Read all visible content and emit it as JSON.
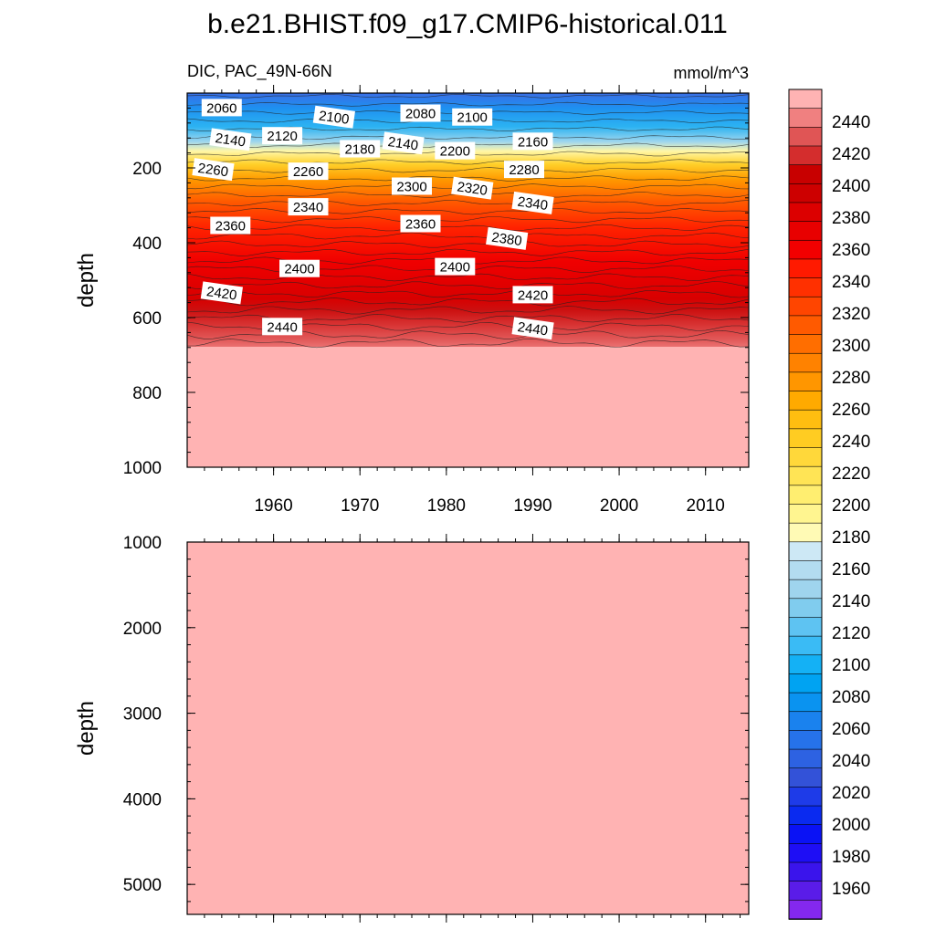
{
  "title": "b.e21.BHIST.f09_g17.CMIP6-historical.011",
  "subtitle_left": "DIC, PAC_49N-66N",
  "subtitle_right": "mmol/m^3",
  "chart_data": [
    {
      "type": "heatmap",
      "name": "upper-panel",
      "variable": "DIC",
      "region": "PAC_49N-66N",
      "units": "mmol/m^3",
      "xlabel": "",
      "ylabel": "depth",
      "xlim": [
        1950,
        2015
      ],
      "ylim": [
        1000,
        0
      ],
      "x_ticks": [
        1960,
        1970,
        1980,
        1990,
        2000,
        2010
      ],
      "y_ticks": [
        200,
        400,
        600,
        800,
        1000
      ],
      "contour_labels": [
        {
          "value": 2060,
          "year": 1954,
          "depth": 40
        },
        {
          "value": 2100,
          "year": 1967,
          "depth": 65
        },
        {
          "value": 2080,
          "year": 1977,
          "depth": 55
        },
        {
          "value": 2100,
          "year": 1983,
          "depth": 65
        },
        {
          "value": 2140,
          "year": 1955,
          "depth": 125
        },
        {
          "value": 2120,
          "year": 1961,
          "depth": 115
        },
        {
          "value": 2180,
          "year": 1970,
          "depth": 150
        },
        {
          "value": 2140,
          "year": 1975,
          "depth": 135
        },
        {
          "value": 2200,
          "year": 1981,
          "depth": 155
        },
        {
          "value": 2160,
          "year": 1990,
          "depth": 130
        },
        {
          "value": 2260,
          "year": 1953,
          "depth": 205
        },
        {
          "value": 2260,
          "year": 1964,
          "depth": 210
        },
        {
          "value": 2300,
          "year": 1976,
          "depth": 250
        },
        {
          "value": 2320,
          "year": 1983,
          "depth": 255
        },
        {
          "value": 2280,
          "year": 1989,
          "depth": 205
        },
        {
          "value": 2340,
          "year": 1964,
          "depth": 305
        },
        {
          "value": 2340,
          "year": 1990,
          "depth": 295
        },
        {
          "value": 2360,
          "year": 1955,
          "depth": 355
        },
        {
          "value": 2360,
          "year": 1977,
          "depth": 350
        },
        {
          "value": 2380,
          "year": 1987,
          "depth": 390
        },
        {
          "value": 2400,
          "year": 1963,
          "depth": 470
        },
        {
          "value": 2400,
          "year": 1981,
          "depth": 465
        },
        {
          "value": 2420,
          "year": 1954,
          "depth": 535
        },
        {
          "value": 2420,
          "year": 1990,
          "depth": 540
        },
        {
          "value": 2440,
          "year": 1961,
          "depth": 625
        },
        {
          "value": 2440,
          "year": 1990,
          "depth": 630
        }
      ],
      "notes": "DIC increases with depth: ~2040 near surface, ~2200 at 150 m, ~2440 at 650 m, >2440 below ~680 m."
    },
    {
      "type": "heatmap",
      "name": "lower-panel",
      "variable": "DIC",
      "xlabel": "",
      "ylabel": "depth",
      "xlim": [
        1950,
        2015
      ],
      "ylim": [
        5350,
        1000
      ],
      "y_ticks": [
        1000,
        2000,
        3000,
        4000,
        5000
      ],
      "value_range": "> 2440"
    }
  ],
  "colorbar": {
    "labels": [
      "2440",
      "2420",
      "2400",
      "2380",
      "2360",
      "2340",
      "2320",
      "2300",
      "2280",
      "2260",
      "2240",
      "2220",
      "2200",
      "2180",
      "2160",
      "2140",
      "2120",
      "2100",
      "2080",
      "2060",
      "2040",
      "2020",
      "2000",
      "1980",
      "1960"
    ],
    "colors_top_to_bottom": [
      "#FFB3B3",
      "#F08080",
      "#E05555",
      "#D42D2D",
      "#C80000",
      "#CD0000",
      "#DC0000",
      "#E80000",
      "#F20000",
      "#FF1A00",
      "#FF3000",
      "#FF4500",
      "#FF5A00",
      "#FF6E00",
      "#FF8200",
      "#FF9600",
      "#FFAA00",
      "#FFBE10",
      "#FFCC22",
      "#FFD83A",
      "#FFE455",
      "#FFEE70",
      "#FFF590",
      "#FFFAB5",
      "#CDE8F5",
      "#B3DCF0",
      "#9FD4EE",
      "#80CCEE",
      "#5EC3F2",
      "#3ABBF5",
      "#14B1F5",
      "#00A3F2",
      "#0A93F0",
      "#1A82EE",
      "#2672EA",
      "#2D62E2",
      "#3352D8",
      "#1E3BE8",
      "#0A2AF0",
      "#0A12F5",
      "#1E0EF5",
      "#3A14EC",
      "#5A1CE8",
      "#8428EE"
    ]
  }
}
